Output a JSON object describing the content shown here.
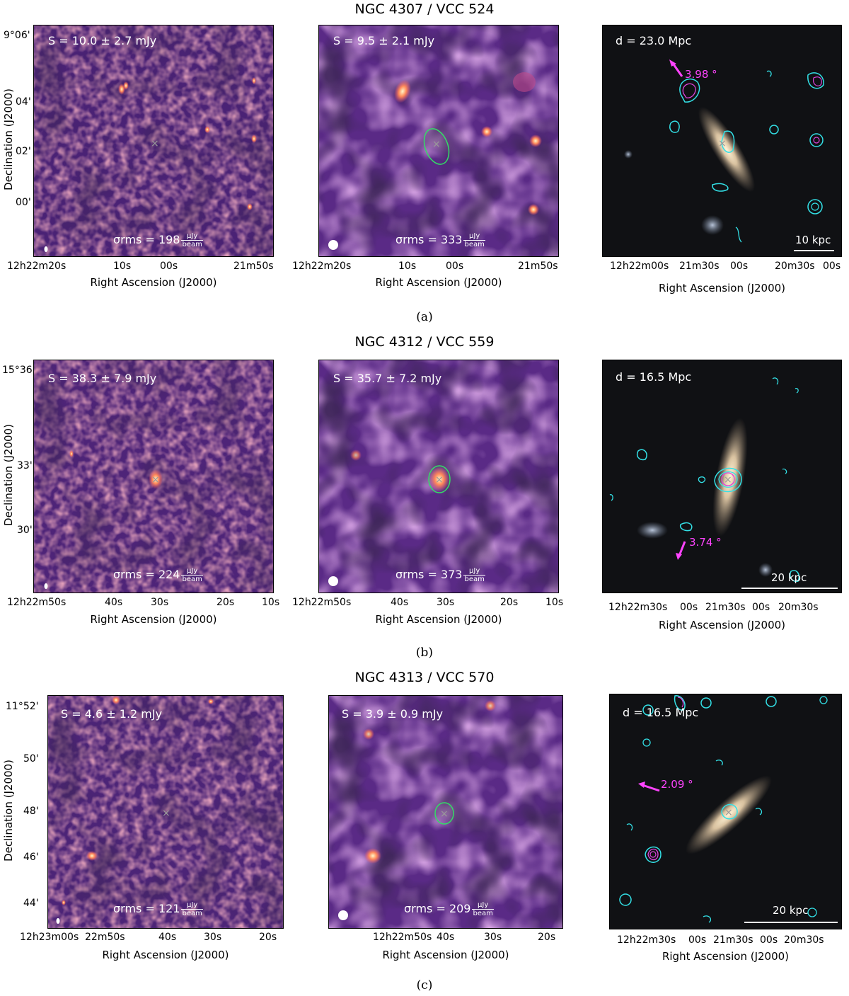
{
  "rows": [
    {
      "title": "NGC 4307 / VCC 524",
      "caption": "(a)",
      "ylabel": "Declination (J2000)",
      "xlabel": "Right Ascension (J2000)",
      "yticks": [
        "9°06'",
        "04'",
        "02'",
        "00'"
      ],
      "xticks_radio": [
        "12h22m20s",
        "10s",
        "00s",
        "21m50s"
      ],
      "xticks_optical": [
        "12h22m00s",
        "21m30s",
        "00s",
        "20m30s",
        "00s"
      ],
      "flux_high": "S = 10.0 ± 2.7 mJy",
      "flux_low": "S = 9.5 ± 2.1 mJy",
      "rms_high_value": "σrms = 198",
      "rms_low_value": "σrms = 333",
      "rms_unit_num": "μJy",
      "rms_unit_den": "beam",
      "distance": "d = 23.0 Mpc",
      "angle": "3.98 °",
      "scalebar": "10 kpc"
    },
    {
      "title": "NGC 4312 / VCC 559",
      "caption": "(b)",
      "ylabel": "Declination (J2000)",
      "xlabel": "Right Ascension (J2000)",
      "yticks": [
        "15°36'",
        "33'",
        "30'"
      ],
      "xticks_radio": [
        "12h22m50s",
        "40s",
        "30s",
        "20s",
        "10s"
      ],
      "xticks_optical": [
        "12h22m30s",
        "00s",
        "21m30s",
        "00s",
        "20m30s"
      ],
      "flux_high": "S = 38.3 ± 7.9 mJy",
      "flux_low": "S = 35.7 ± 7.2 mJy",
      "rms_high_value": "σrms = 224",
      "rms_low_value": "σrms = 373",
      "rms_unit_num": "μJy",
      "rms_unit_den": "beam",
      "distance": "d = 16.5 Mpc",
      "angle": "3.74 °",
      "scalebar": "20 kpc"
    },
    {
      "title": "NGC 4313 / VCC 570",
      "caption": "(c)",
      "ylabel": "Declination (J2000)",
      "xlabel": "Right Ascension (J2000)",
      "yticks": [
        "11°52'",
        "50'",
        "48'",
        "46'",
        "44'"
      ],
      "xticks_radio": [
        "12h23m00s",
        "22m50s",
        "40s",
        "30s",
        "20s"
      ],
      "xticks_radio_low": [
        "12h22m50s",
        "40s",
        "30s",
        "20s"
      ],
      "xticks_optical": [
        "12h22m30s",
        "00s",
        "21m30s",
        "00s",
        "20m30s"
      ],
      "flux_high": "S = 4.6 ± 1.2 mJy",
      "flux_low": "S = 3.9 ± 0.9 mJy",
      "rms_high_value": "σrms = 121",
      "rms_low_value": "σrms = 209",
      "rms_unit_num": "μJy",
      "rms_unit_den": "beam",
      "distance": "d = 16.5 Mpc",
      "angle": "2.09 °",
      "scalebar": "20 kpc"
    }
  ],
  "colors": {
    "radio_background": "#5a2a86",
    "radio_dark": "#12061f",
    "radio_bright": "#ffd27a",
    "ellipse": "#33dd66",
    "contour_cyan": "#33e0e6",
    "contour_magenta": "#dd44dd",
    "angle_arrow": "#ff44ff"
  }
}
